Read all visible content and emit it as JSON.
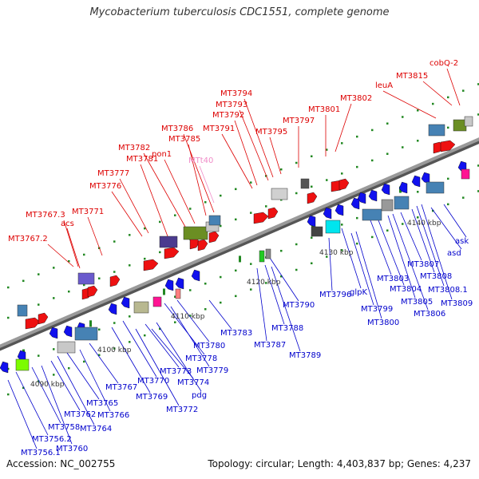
{
  "title": "Mycobacterium tuberculosis CDC1551, complete genome",
  "footer": {
    "accession": "Accession: NC_002755",
    "topology": "Topology: circular; Length: 4,403,837 bp; Genes: 4,237"
  },
  "colors": {
    "backbone": "#8c8c8c",
    "forward_label": "#dd0000",
    "reverse_label": "#0000cc",
    "trna_label": "#f08cc8",
    "forward_gene": "#ee1111",
    "reverse_gene": "#1111ee",
    "tick": "#228822"
  },
  "scale": {
    "ticks": [
      {
        "label": "4090 kbp",
        "pos": 4090
      },
      {
        "label": "4100 kbp",
        "pos": 4100
      },
      {
        "label": "4110 kbp",
        "pos": 4110
      },
      {
        "label": "4120 kbp",
        "pos": 4120
      },
      {
        "label": "4130 kbp",
        "pos": 4130
      },
      {
        "label": "4140 kbp",
        "pos": 4140
      }
    ]
  },
  "labels_forward": [
    "MT3767.2",
    "MT3767.3",
    "acs",
    "MT3771",
    "MT3776",
    "MT3777",
    "MT3781",
    "MT3782",
    "pon1",
    "MT3785",
    "MT3786",
    "MT3791",
    "MT3792",
    "MT3793",
    "MT3794",
    "MT3795",
    "MT3797",
    "MT3801",
    "MT3802",
    "leuA",
    "MT3815",
    "cobQ-2"
  ],
  "label_trna": "MTt40",
  "labels_reverse": [
    "MT3756.1",
    "MT3756.2",
    "MT3758",
    "MT3760",
    "MT3762",
    "MT3764",
    "MT3765",
    "MT3766",
    "MT3767",
    "MT3769",
    "MT3770",
    "MT3772",
    "MT3773",
    "pdg",
    "MT3774",
    "MT3778",
    "MT3779",
    "MT3780",
    "MT3783",
    "MT3787",
    "MT3788",
    "MT3789",
    "MT3790",
    "MT3796",
    "glpK",
    "MT3799",
    "MT3800",
    "MT3803",
    "MT3804",
    "MT3805",
    "MT3806",
    "MT3807",
    "MT3808",
    "MT3808.1",
    "MT3809",
    "asd",
    "ask"
  ]
}
